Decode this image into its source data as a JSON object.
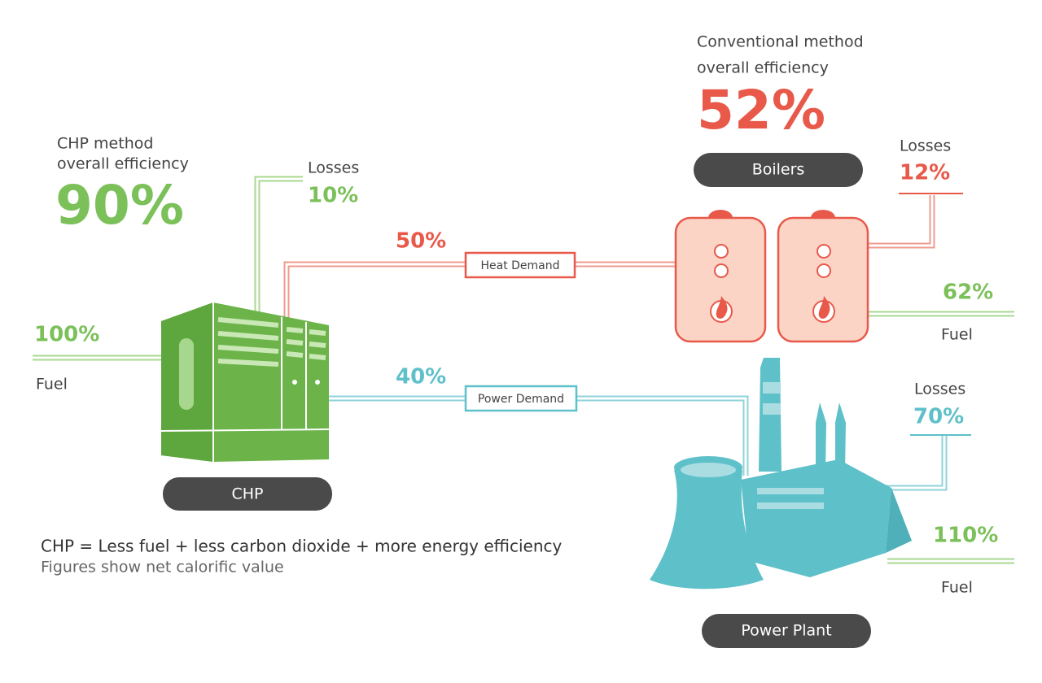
{
  "chp": {
    "heading_lines": [
      "CHP method",
      "overall efficiency"
    ],
    "efficiency": "90%",
    "label": "CHP",
    "fuel": {
      "value": "100%",
      "label": "Fuel"
    },
    "losses": {
      "label": "Losses",
      "value": "10%"
    }
  },
  "conventional": {
    "heading_lines": [
      "Conventional method",
      "overall efficiency"
    ],
    "efficiency": "52%",
    "boilers": {
      "label": "Boilers",
      "losses": {
        "label": "Losses",
        "value": "12%"
      },
      "fuel": {
        "value": "62%",
        "label": "Fuel"
      }
    },
    "power_plant": {
      "label": "Power Plant",
      "losses": {
        "label": "Losses",
        "value": "70%"
      },
      "fuel": {
        "value": "110%",
        "label": "Fuel"
      }
    }
  },
  "flows": {
    "heat": {
      "value": "50%",
      "label": "Heat Demand"
    },
    "power": {
      "value": "40%",
      "label": "Power Demand"
    }
  },
  "footer": {
    "lines": [
      "CHP = Less fuel + less carbon dioxide + more energy efficiency",
      "Figures show net calorific value"
    ]
  }
}
